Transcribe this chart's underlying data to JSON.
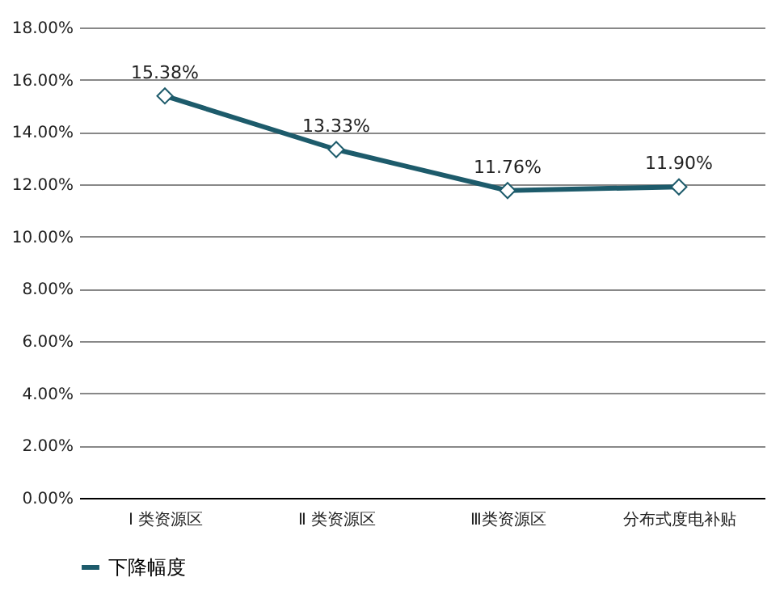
{
  "chart_data": {
    "type": "line",
    "categories": [
      "Ⅰ 类资源区",
      "Ⅱ 类资源区",
      "Ⅲ类资源区",
      "分布式度电补贴"
    ],
    "series": [
      {
        "name": "下降幅度",
        "color": "#1d5b6b",
        "values": [
          15.38,
          13.33,
          11.76,
          11.9
        ],
        "value_labels": [
          "15.38%",
          "13.33%",
          "11.76%",
          "11.90%"
        ]
      }
    ],
    "ylim": [
      0,
      18
    ],
    "yticks": [
      {
        "value": 0,
        "label": "0.00%"
      },
      {
        "value": 2,
        "label": "2.00%"
      },
      {
        "value": 4,
        "label": "4.00%"
      },
      {
        "value": 6,
        "label": "6.00%"
      },
      {
        "value": 8,
        "label": "8.00%"
      },
      {
        "value": 10,
        "label": "10.00%"
      },
      {
        "value": 12,
        "label": "12.00%"
      },
      {
        "value": 14,
        "label": "14.00%"
      },
      {
        "value": 16,
        "label": "16.00%"
      },
      {
        "value": 18,
        "label": "18.00%"
      }
    ],
    "grid": "y",
    "legend": "bottom",
    "marker": "diamond",
    "line_style": "solid"
  }
}
